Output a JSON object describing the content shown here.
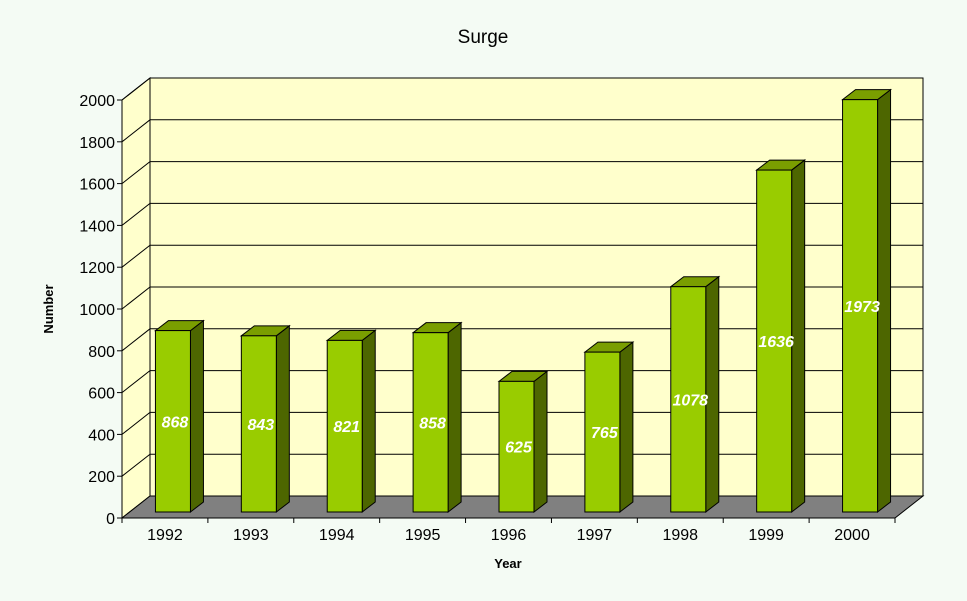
{
  "chart_data": {
    "type": "bar",
    "title": "Surge",
    "xlabel": "Year",
    "ylabel": "Number",
    "categories": [
      "1992",
      "1993",
      "1994",
      "1995",
      "1996",
      "1997",
      "1998",
      "1999",
      "2000"
    ],
    "values": [
      868,
      843,
      821,
      858,
      625,
      765,
      1078,
      1636,
      1973
    ],
    "data_labels": [
      "868",
      "843",
      "821",
      "858",
      "625",
      "765",
      "1078",
      "1636",
      "1973"
    ],
    "yticks": [
      "0",
      "200",
      "400",
      "600",
      "800",
      "1000",
      "1200",
      "1400",
      "1600",
      "1800",
      "2000"
    ],
    "ylim": [
      0,
      2000
    ],
    "grid": true,
    "style": "3d",
    "colors": {
      "bar_front": "#99cc00",
      "bar_side": "#4d6600",
      "bar_top": "#7a9e00",
      "wall": "#ffffcc",
      "floor": "#808080",
      "background": "#f4fbf4"
    }
  }
}
